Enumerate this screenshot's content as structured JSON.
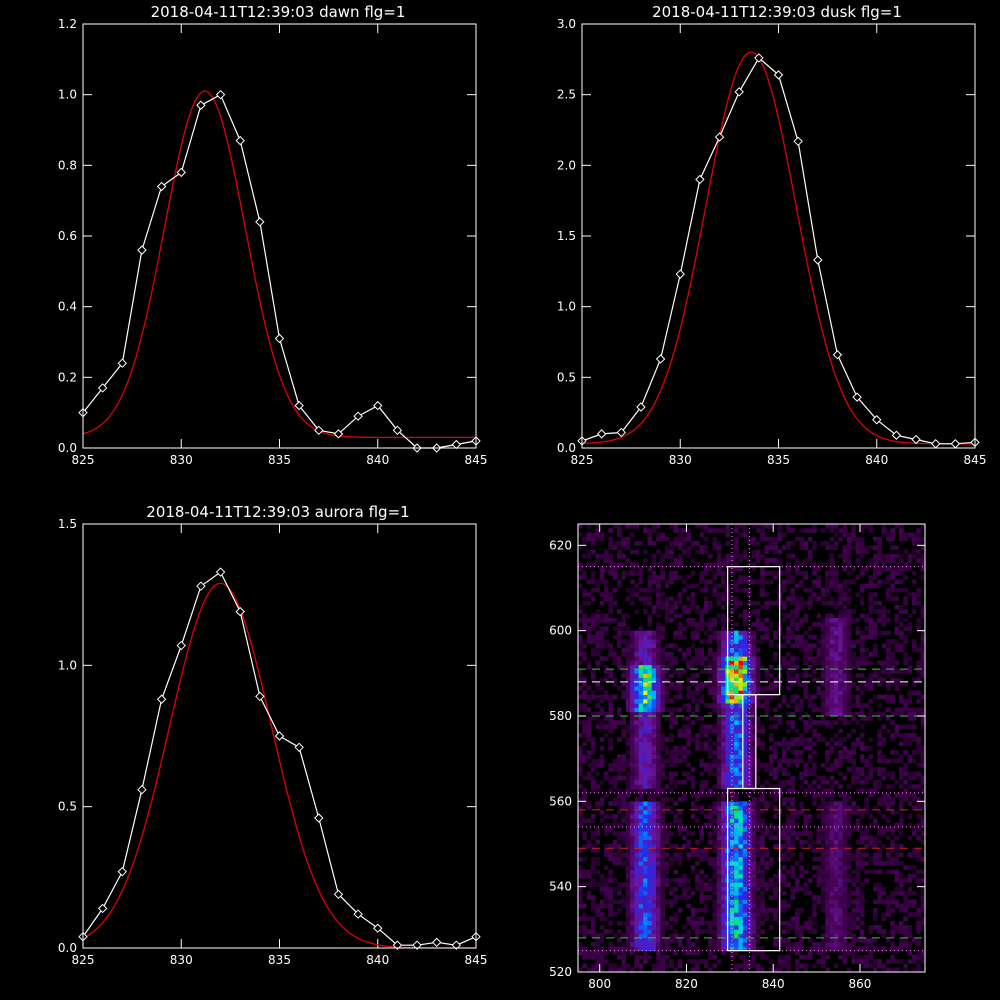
{
  "colors": {
    "background": "#000000",
    "axes": "#ffffff",
    "data_line": "#ffffff",
    "fit_line": "#e00000"
  },
  "chart_data": [
    {
      "id": "dawn",
      "type": "line",
      "title": "2018-04-11T12:39:03 dawn flg=1",
      "xlim": [
        825,
        845
      ],
      "ylim": [
        0,
        1.2
      ],
      "xticks": [
        "825",
        "830",
        "835",
        "840",
        "845"
      ],
      "yticks": [
        "0.0",
        "0.2",
        "0.4",
        "0.6",
        "0.8",
        "1.0",
        "1.2"
      ],
      "series": [
        {
          "role": "data",
          "marker": "diamond",
          "x": [
            825,
            826,
            827,
            828,
            829,
            830,
            831,
            832,
            833,
            834,
            835,
            836,
            837,
            838,
            839,
            840,
            841,
            842,
            843,
            844,
            845
          ],
          "y": [
            0.1,
            0.17,
            0.24,
            0.56,
            0.74,
            0.78,
            0.97,
            1.0,
            0.87,
            0.64,
            0.31,
            0.12,
            0.05,
            0.04,
            0.09,
            0.12,
            0.05,
            0.0,
            0.0,
            0.01,
            0.02
          ]
        },
        {
          "role": "fit",
          "model": "gauss",
          "peak": 0.98,
          "center": 831.2,
          "sigma": 2.05,
          "offset": 0.03
        }
      ]
    },
    {
      "id": "dusk",
      "type": "line",
      "title": "2018-04-11T12:39:03 dusk flg=1",
      "xlim": [
        825,
        845
      ],
      "ylim": [
        0,
        3.0
      ],
      "xticks": [
        "825",
        "830",
        "835",
        "840",
        "845"
      ],
      "yticks": [
        "0.0",
        "0.5",
        "1.0",
        "1.5",
        "2.0",
        "2.5",
        "3.0"
      ],
      "series": [
        {
          "role": "data",
          "marker": "diamond",
          "x": [
            825,
            826,
            827,
            828,
            829,
            830,
            831,
            832,
            833,
            834,
            835,
            836,
            837,
            838,
            839,
            840,
            841,
            842,
            843,
            844,
            845
          ],
          "y": [
            0.05,
            0.1,
            0.11,
            0.29,
            0.63,
            1.23,
            1.9,
            2.2,
            2.52,
            2.76,
            2.64,
            2.17,
            1.33,
            0.66,
            0.36,
            0.2,
            0.09,
            0.06,
            0.03,
            0.03,
            0.04
          ]
        },
        {
          "role": "fit",
          "model": "gauss",
          "peak": 2.77,
          "center": 833.6,
          "sigma": 2.3,
          "offset": 0.03
        }
      ]
    },
    {
      "id": "aurora",
      "type": "line",
      "title": "2018-04-11T12:39:03 aurora flg=1",
      "xlim": [
        825,
        845
      ],
      "ylim": [
        0,
        1.5
      ],
      "xticks": [
        "825",
        "830",
        "835",
        "840",
        "845"
      ],
      "yticks": [
        "0.0",
        "0.5",
        "1.0",
        "1.5"
      ],
      "series": [
        {
          "role": "data",
          "marker": "diamond",
          "x": [
            825,
            826,
            827,
            828,
            829,
            830,
            831,
            832,
            833,
            834,
            835,
            836,
            837,
            838,
            839,
            840,
            841,
            842,
            843,
            844,
            845
          ],
          "y": [
            0.04,
            0.14,
            0.27,
            0.56,
            0.88,
            1.07,
            1.28,
            1.33,
            1.19,
            0.89,
            0.75,
            0.71,
            0.46,
            0.19,
            0.12,
            0.07,
            0.01,
            0.01,
            0.02,
            0.01,
            0.04
          ]
        },
        {
          "role": "fit",
          "model": "gauss",
          "peak": 1.29,
          "center": 832.0,
          "sigma": 2.6,
          "offset": 0.0
        }
      ]
    },
    {
      "id": "spectrogram",
      "type": "heatmap",
      "title": "",
      "xlim": [
        795,
        875
      ],
      "ylim": [
        520,
        625
      ],
      "xticks": [
        "800",
        "820",
        "840",
        "860"
      ],
      "yticks": [
        "520",
        "540",
        "560",
        "580",
        "600",
        "620"
      ],
      "columns": [
        {
          "center": 810.5,
          "width": 3.0,
          "segments": [
            [
              525,
              560,
              0.45
            ],
            [
              563,
              600,
              0.3
            ],
            [
              581,
              592,
              0.72
            ]
          ]
        },
        {
          "center": 831.5,
          "width": 3.2,
          "segments": [
            [
              525,
              560,
              0.62
            ],
            [
              563,
              600,
              0.5
            ],
            [
              583,
              594,
              0.95
            ]
          ]
        },
        {
          "center": 854.5,
          "width": 3.0,
          "segments": [
            [
              525,
              560,
              0.18
            ],
            [
              580,
              603,
              0.22
            ]
          ]
        }
      ],
      "boxes": [
        {
          "x": [
            829.5,
            841.5
          ],
          "y": [
            585,
            615
          ]
        },
        {
          "x": [
            829.5,
            841.5
          ],
          "y": [
            525,
            563
          ]
        },
        {
          "x": [
            833.0,
            836.0
          ],
          "y": [
            563,
            585
          ]
        }
      ],
      "hlines": [
        {
          "y": 615,
          "color": "#ff88ff",
          "style": "dotted"
        },
        {
          "y": 591,
          "color": "#22cc22",
          "style": "dashed"
        },
        {
          "y": 588,
          "color": "#ffffff",
          "style": "dashed"
        },
        {
          "y": 580,
          "color": "#22cc22",
          "style": "dashed"
        },
        {
          "y": 562,
          "color": "#ff88ff",
          "style": "dotted"
        },
        {
          "y": 558,
          "color": "#cc2222",
          "style": "dashed"
        },
        {
          "y": 554,
          "color": "#ff88ff",
          "style": "dotted"
        },
        {
          "y": 549,
          "color": "#cc2222",
          "style": "dashed"
        },
        {
          "y": 528,
          "color": "#22cc22",
          "style": "dashed"
        },
        {
          "y": 525,
          "color": "#ff88ff",
          "style": "dotted"
        }
      ],
      "vlines": [
        {
          "x": 830.5,
          "color": "#ff88ff",
          "style": "dotted"
        },
        {
          "x": 834.5,
          "color": "#ff88ff",
          "style": "dotted"
        }
      ]
    }
  ]
}
